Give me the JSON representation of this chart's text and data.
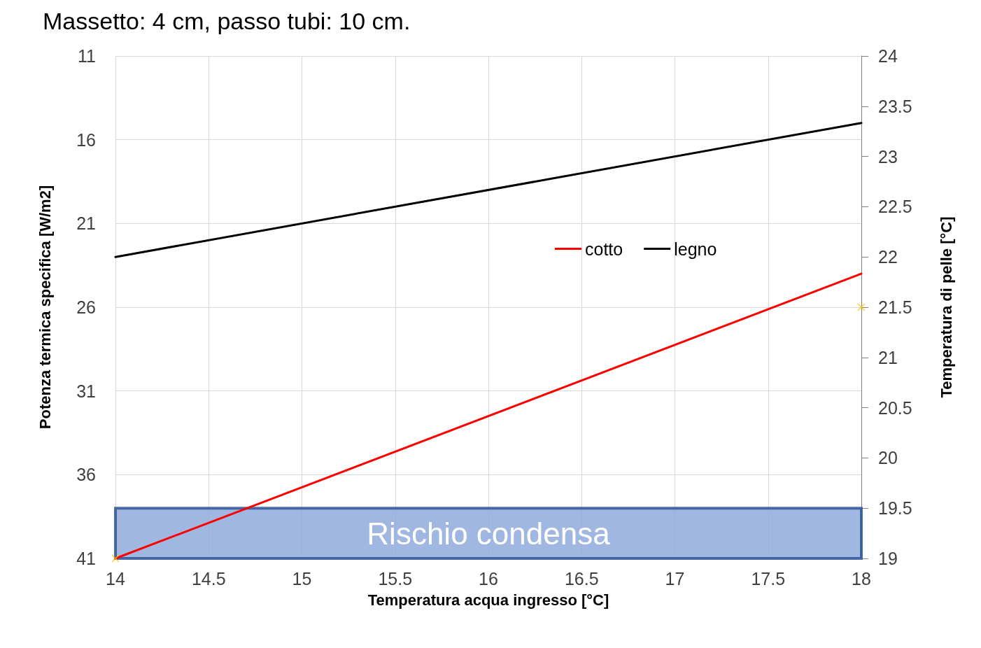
{
  "chart_data": {
    "type": "line",
    "title": "Massetto: 4 cm, passo tubi: 10 cm.",
    "xlabel": "Temperatura acqua ingresso [°C]",
    "ylabel": "Potenza termica specifica [W/m2]",
    "y2label": "Temperatura di pelle [°C]",
    "x": [
      14,
      18
    ],
    "series": [
      {
        "name": "cotto",
        "color": "#ff0000",
        "values": [
          41,
          24.0
        ]
      },
      {
        "name": "legno",
        "color": "#000000",
        "values": [
          23.0,
          15.0
        ]
      },
      {
        "type": "scatter",
        "axis": "y2",
        "color": "#ffc000",
        "marker": "cross",
        "values": [
          19,
          21.5
        ]
      }
    ],
    "xlim": [
      14,
      18
    ],
    "xticks": [
      14,
      14.5,
      15,
      15.5,
      16,
      16.5,
      17,
      17.5,
      18
    ],
    "ylim": [
      41,
      11
    ],
    "yticks": [
      11,
      16,
      21,
      26,
      31,
      36,
      41
    ],
    "y2lim": [
      19,
      24
    ],
    "y2ticks": [
      19,
      19.5,
      20,
      20.5,
      21,
      21.5,
      22,
      22.5,
      23,
      23.5,
      24
    ],
    "bands": [
      {
        "axis": "y2",
        "from": 19,
        "to": 19.5,
        "label": "Rischio condensa",
        "color": "#8faadc"
      }
    ],
    "grid": true,
    "legend": "center",
    "marker": "none",
    "line_style": "solid"
  }
}
